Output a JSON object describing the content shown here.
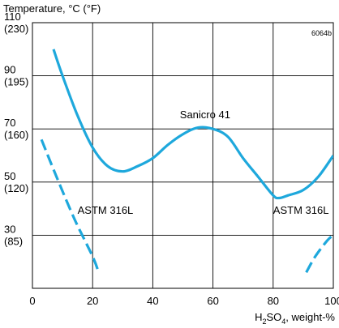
{
  "chart_data": {
    "type": "line",
    "figure_id": "6064b",
    "y_axis_title": "Temperature, °C (°F)",
    "x_axis_title_parts": {
      "base": "H",
      "sub1": "2",
      "mid": "SO",
      "sub2": "4",
      "rest": ", weight-%"
    },
    "xlim": [
      0,
      100
    ],
    "ylim": [
      10,
      110
    ],
    "grid": true,
    "x_ticks": [
      {
        "value": 0,
        "label": "0"
      },
      {
        "value": 20,
        "label": "20"
      },
      {
        "value": 40,
        "label": "40"
      },
      {
        "value": 60,
        "label": "60"
      },
      {
        "value": 80,
        "label": "80"
      },
      {
        "value": 100,
        "label": "100"
      }
    ],
    "y_ticks": [
      {
        "value": 110,
        "label_c": "110",
        "label_f": "(230)"
      },
      {
        "value": 90,
        "label_c": "90",
        "label_f": "(195)"
      },
      {
        "value": 70,
        "label_c": "70",
        "label_f": "(160)"
      },
      {
        "value": 50,
        "label_c": "50",
        "label_f": "(120)"
      },
      {
        "value": 30,
        "label_c": "30",
        "label_f": "(85)"
      }
    ],
    "series": [
      {
        "name": "Sanicro 41",
        "style": "solid",
        "color": "#1ea8dc",
        "points": [
          [
            7,
            100
          ],
          [
            10,
            90
          ],
          [
            15,
            75
          ],
          [
            20,
            63
          ],
          [
            25,
            56
          ],
          [
            30,
            54
          ],
          [
            35,
            56
          ],
          [
            40,
            59
          ],
          [
            45,
            64
          ],
          [
            50,
            68
          ],
          [
            55,
            70.5
          ],
          [
            60,
            70
          ],
          [
            65,
            67
          ],
          [
            70,
            59
          ],
          [
            75,
            52
          ],
          [
            80,
            45
          ],
          [
            82,
            44
          ],
          [
            85,
            45
          ],
          [
            90,
            47
          ],
          [
            95,
            52
          ],
          [
            100,
            60
          ]
        ]
      },
      {
        "name": "ASTM 316L",
        "style": "dashed",
        "color": "#1ea8dc",
        "points": [
          [
            3,
            66
          ],
          [
            8,
            52
          ],
          [
            14,
            36
          ],
          [
            20,
            22
          ],
          [
            22,
            16
          ]
        ]
      },
      {
        "name": "ASTM 316L",
        "style": "dashed",
        "color": "#1ea8dc",
        "points": [
          [
            91,
            16
          ],
          [
            94,
            22
          ],
          [
            98,
            28
          ],
          [
            100,
            30
          ]
        ]
      }
    ],
    "annotations": [
      {
        "text": "Sanicro 41",
        "x": 49,
        "y": 74
      },
      {
        "text": "ASTM 316L",
        "x": 15,
        "y": 38
      },
      {
        "text": "ASTM 316L",
        "x": 80,
        "y": 38
      }
    ]
  }
}
